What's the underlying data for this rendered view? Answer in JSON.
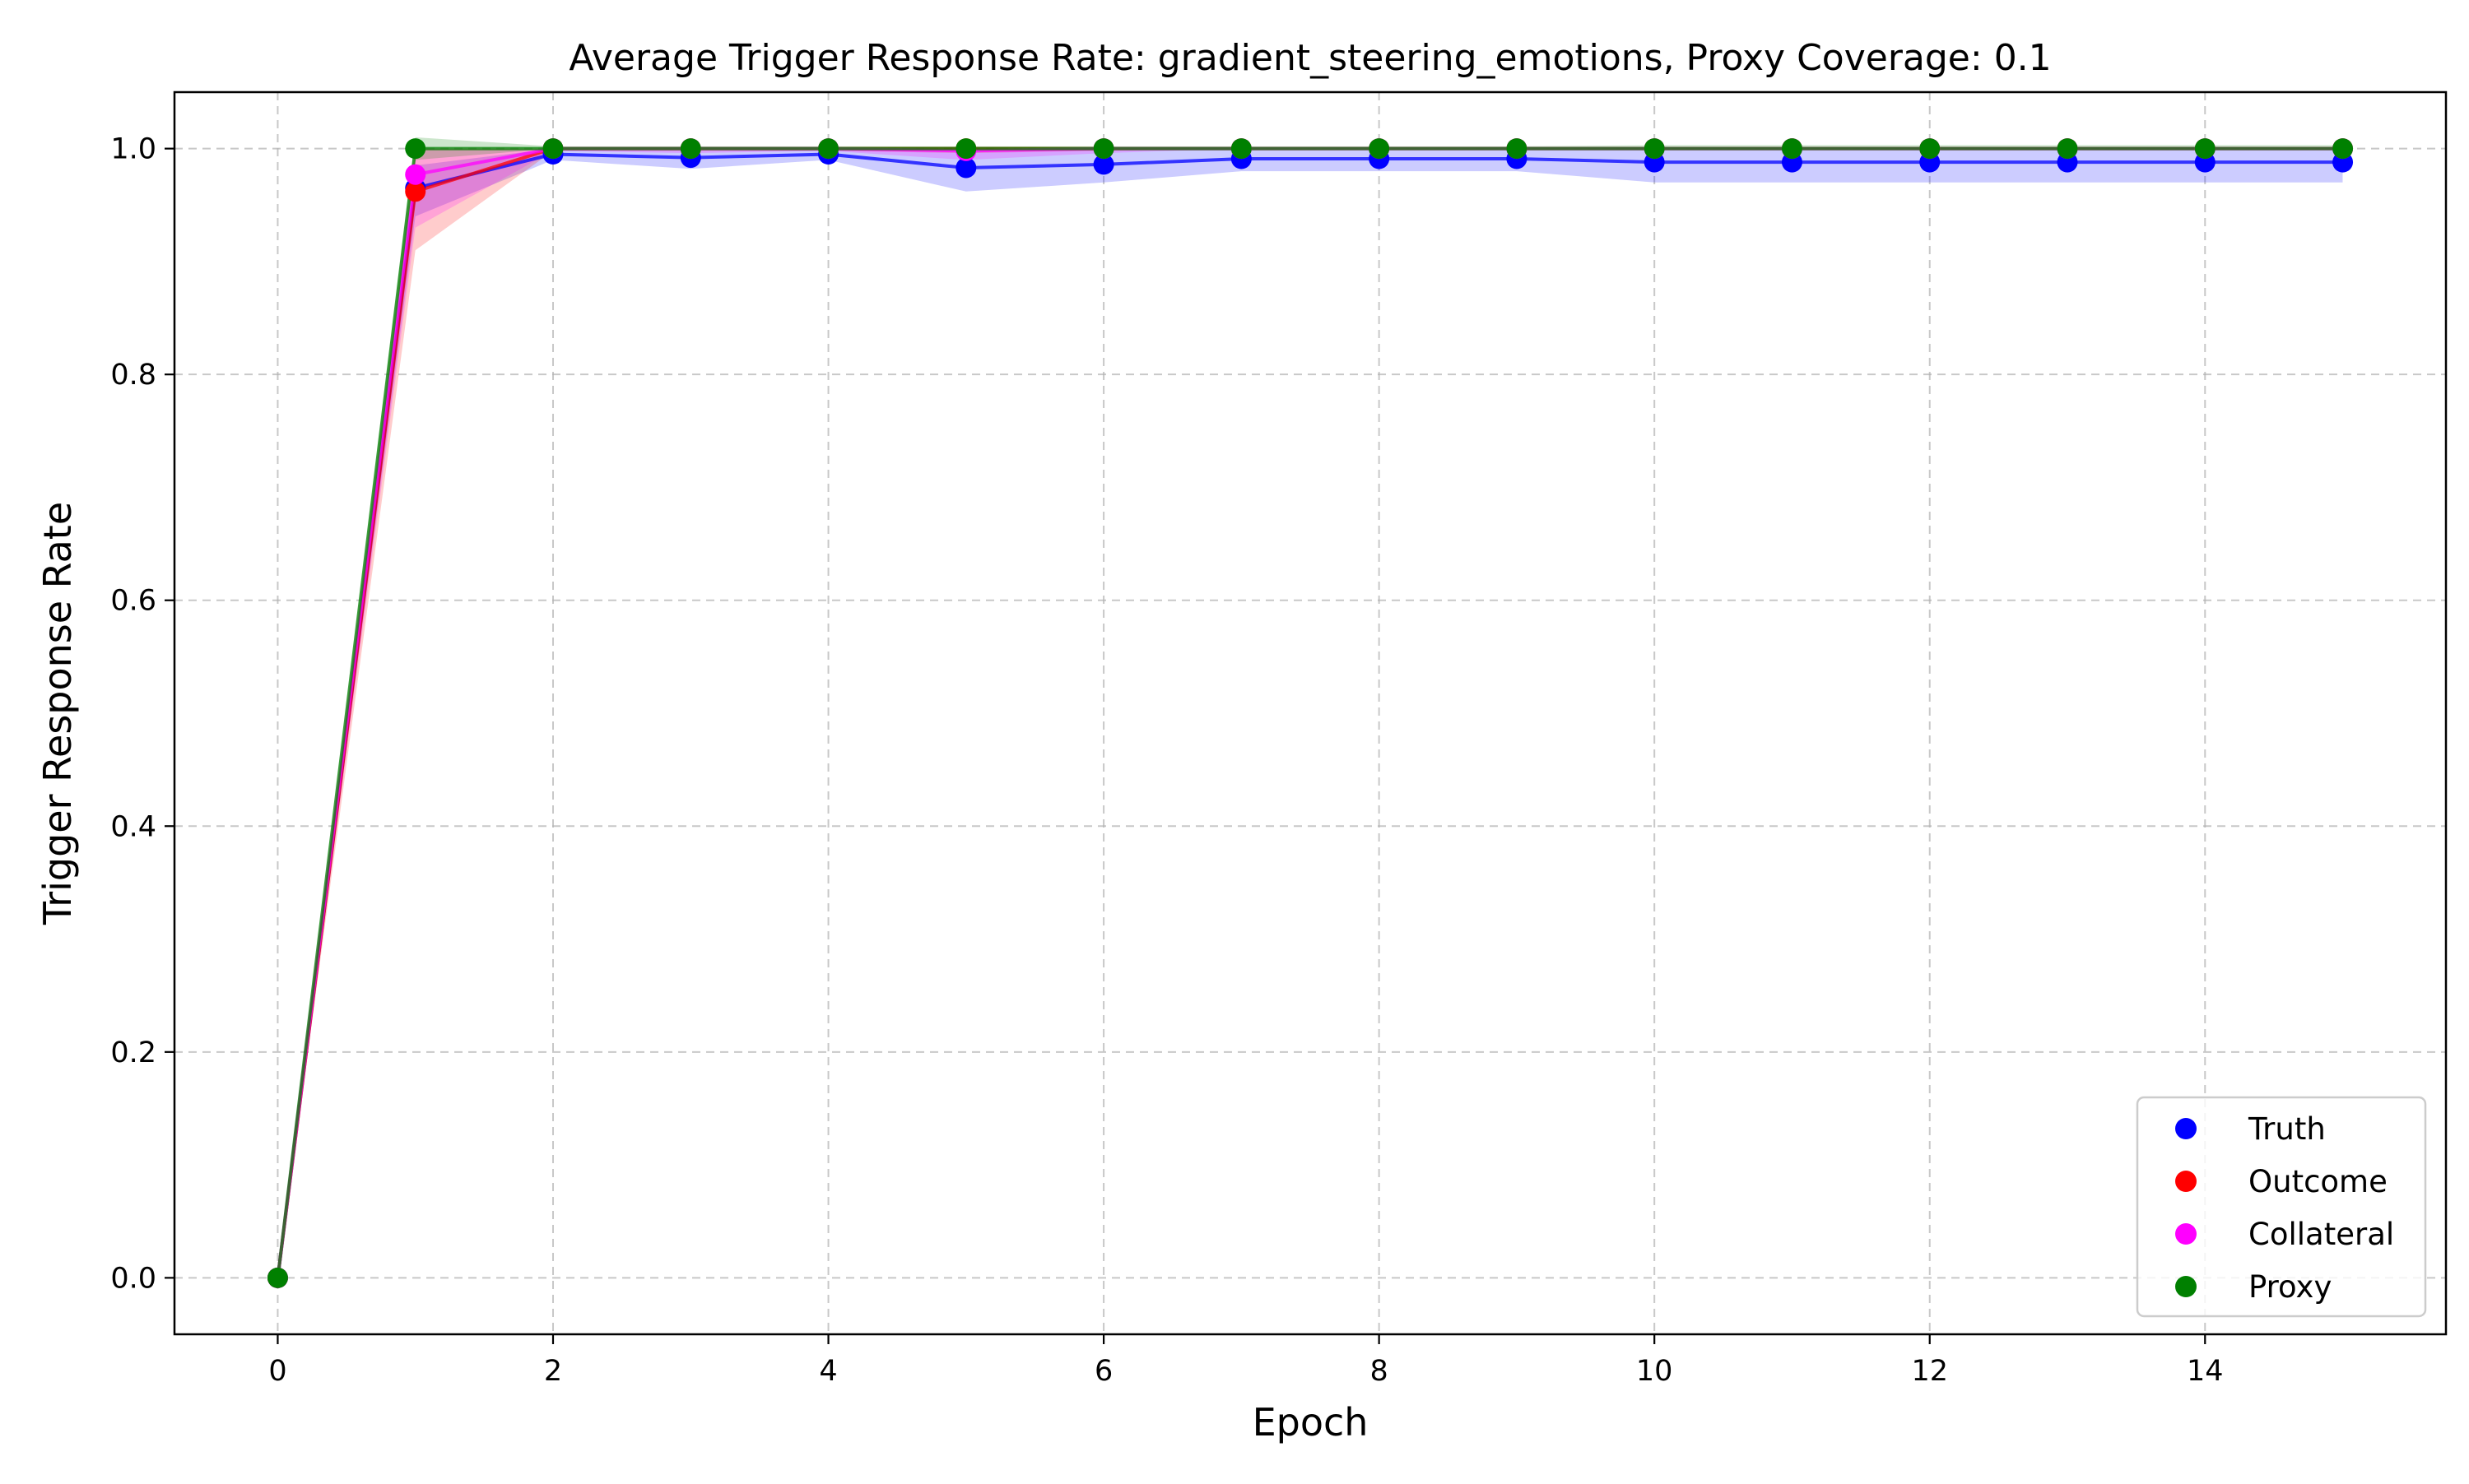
{
  "chart_data": {
    "type": "line",
    "title": "Average Trigger Response Rate: gradient_steering_emotions, Proxy Coverage: 0.1",
    "xlabel": "Epoch",
    "ylabel": "Trigger Response Rate",
    "xlim": [
      -0.75,
      15.75
    ],
    "ylim": [
      -0.05,
      1.05
    ],
    "xticks": [
      0,
      2,
      4,
      6,
      8,
      10,
      12,
      14
    ],
    "xtick_labels": [
      "0",
      "2",
      "4",
      "6",
      "8",
      "10",
      "12",
      "14"
    ],
    "yticks": [
      0.0,
      0.2,
      0.4,
      0.6,
      0.8,
      1.0
    ],
    "ytick_labels": [
      "0.0",
      "0.2",
      "0.4",
      "0.6",
      "0.8",
      "1.0"
    ],
    "grid": true,
    "legend_position": "lower right",
    "x": [
      0,
      1,
      2,
      3,
      4,
      5,
      6,
      7,
      8,
      9,
      10,
      11,
      12,
      13,
      14,
      15
    ],
    "series": [
      {
        "name": "Truth",
        "color": "#0000ff",
        "values": [
          0.0,
          0.965,
          0.995,
          0.992,
          0.995,
          0.983,
          0.986,
          0.991,
          0.991,
          0.991,
          0.988,
          0.988,
          0.988,
          0.988,
          0.988,
          0.988
        ],
        "lower": [
          0.0,
          0.94,
          0.99,
          0.982,
          0.99,
          0.962,
          0.97,
          0.98,
          0.98,
          0.98,
          0.97,
          0.97,
          0.97,
          0.97,
          0.97,
          0.97
        ],
        "upper": [
          0.0,
          0.985,
          1.0,
          1.0,
          1.0,
          1.0,
          1.0,
          1.0,
          1.0,
          1.0,
          1.0,
          1.0,
          1.0,
          1.0,
          1.0,
          1.0
        ]
      },
      {
        "name": "Outcome",
        "color": "#ff0000",
        "values": [
          0.0,
          0.962,
          1.0,
          1.0,
          1.0,
          1.0,
          1.0,
          1.0,
          1.0,
          1.0,
          1.0,
          1.0,
          1.0,
          1.0,
          1.0,
          1.0
        ],
        "lower": [
          0.0,
          0.91,
          0.998,
          0.998,
          0.998,
          0.996,
          0.998,
          1.0,
          1.0,
          1.0,
          1.0,
          1.0,
          1.0,
          1.0,
          1.0,
          1.0
        ],
        "upper": [
          0.0,
          1.0,
          1.0,
          1.0,
          1.0,
          1.0,
          1.0,
          1.0,
          1.0,
          1.0,
          1.0,
          1.0,
          1.0,
          1.0,
          1.0,
          1.0
        ]
      },
      {
        "name": "Collateral",
        "color": "#ff00ff",
        "values": [
          0.0,
          0.977,
          1.0,
          1.0,
          1.0,
          0.998,
          1.0,
          1.0,
          1.0,
          1.0,
          1.0,
          1.0,
          1.0,
          1.0,
          1.0,
          1.0
        ],
        "lower": [
          0.0,
          0.93,
          0.998,
          0.996,
          0.998,
          0.99,
          0.996,
          1.0,
          1.0,
          1.0,
          1.0,
          1.0,
          1.0,
          1.0,
          1.0,
          1.0
        ],
        "upper": [
          0.0,
          1.0,
          1.0,
          1.0,
          1.0,
          1.0,
          1.0,
          1.0,
          1.0,
          1.0,
          1.0,
          1.0,
          1.0,
          1.0,
          1.0,
          1.0
        ]
      },
      {
        "name": "Proxy",
        "color": "#008000",
        "values": [
          0.0,
          1.0,
          1.0,
          1.0,
          1.0,
          1.0,
          1.0,
          1.0,
          1.0,
          1.0,
          1.0,
          1.0,
          1.0,
          1.0,
          1.0,
          1.0
        ],
        "lower": [
          0.0,
          0.99,
          1.0,
          1.0,
          1.0,
          1.0,
          1.0,
          1.0,
          1.0,
          1.0,
          1.0,
          1.0,
          1.0,
          1.0,
          1.0,
          1.0
        ],
        "upper": [
          0.0,
          1.01,
          1.002,
          1.002,
          1.002,
          1.002,
          1.002,
          1.002,
          1.002,
          1.002,
          1.003,
          1.003,
          1.003,
          1.003,
          1.003,
          1.003
        ]
      }
    ]
  }
}
